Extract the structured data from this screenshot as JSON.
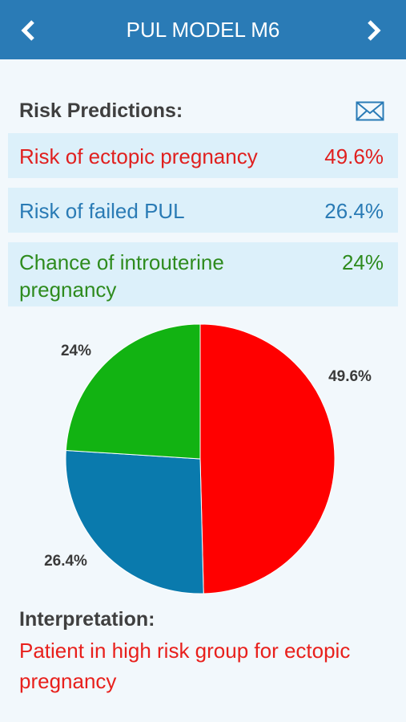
{
  "header": {
    "title": "PUL MODEL M6"
  },
  "risk": {
    "title": "Risk Predictions:",
    "rows": [
      {
        "label": "Risk of ectopic pregnancy",
        "value": "49.6%"
      },
      {
        "label": "Risk of failed PUL",
        "value": "26.4%"
      },
      {
        "label": "Chance of introuterine pregnancy",
        "value": "24%"
      }
    ]
  },
  "chart_data": {
    "type": "pie",
    "values": [
      49.6,
      26.4,
      24
    ],
    "value_labels": [
      "49.6%",
      "26.4%",
      "24%"
    ],
    "colors": [
      "#ff0000",
      "#0a7aad",
      "#12b312"
    ]
  },
  "interpretation": {
    "title": "Interpretation:",
    "text": "Patient in high risk group for ectopic pregnancy"
  }
}
